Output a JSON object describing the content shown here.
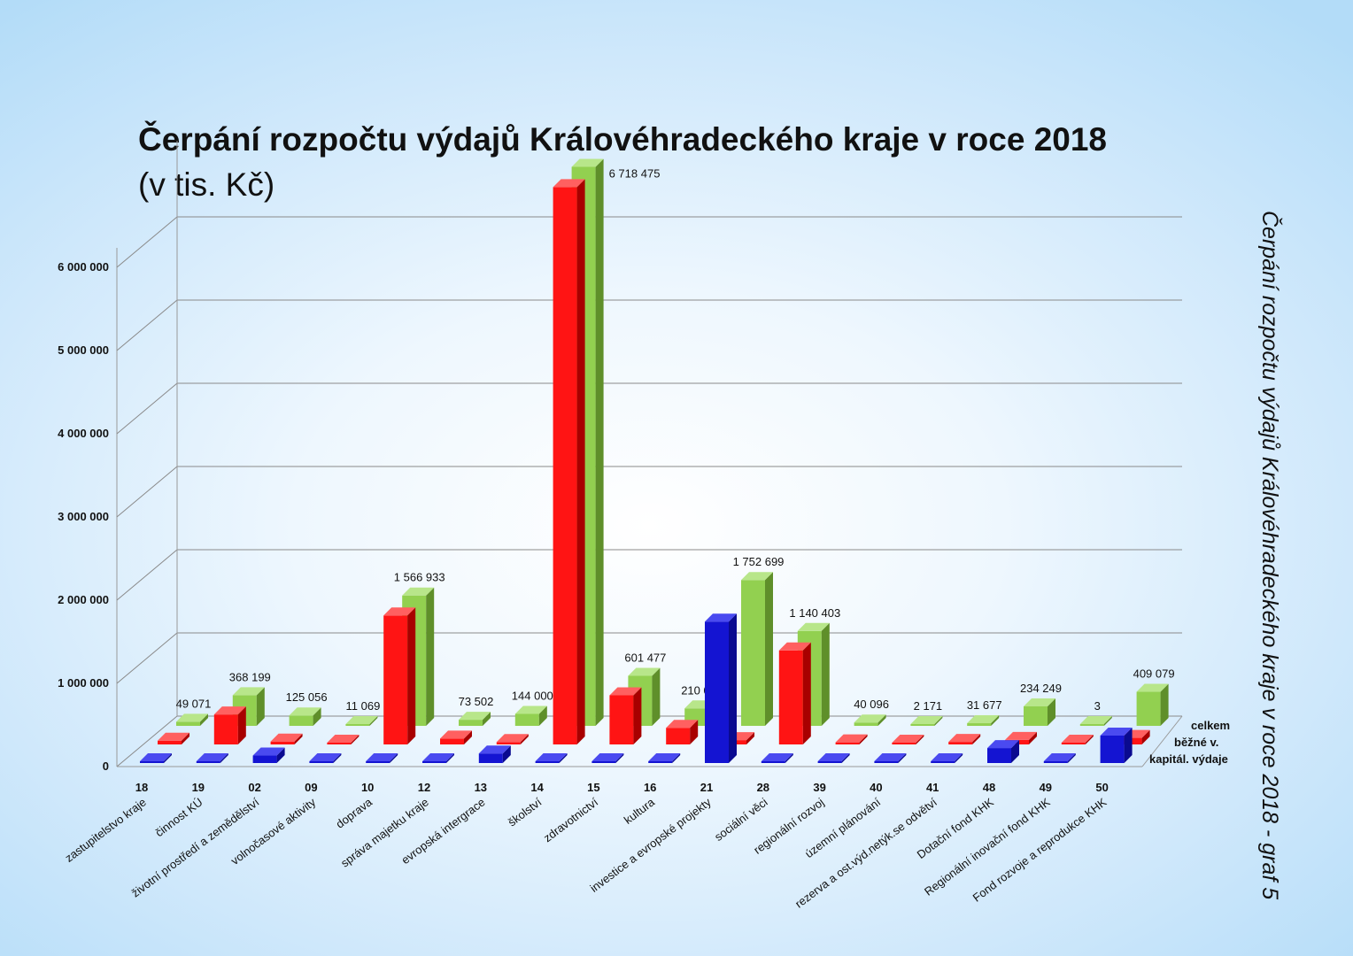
{
  "title": "Čerpání rozpočtu výdajů Královéhradeckého kraje v roce 2018",
  "subtitle": "(v tis. Kč)",
  "side_title": "Čerpání rozpočtu výdajů Královéhradeckého kraje v roce 2018 - graf 5",
  "chart_data": {
    "type": "bar",
    "subtype": "3d-clustered-depth",
    "title": "Čerpání rozpočtu výdajů Královéhradeckého kraje v roce 2018",
    "subtitle": "(v tis. Kč)",
    "codes": [
      "18",
      "19",
      "02",
      "09",
      "10",
      "12",
      "13",
      "14",
      "15",
      "16",
      "21",
      "28",
      "39",
      "40",
      "41",
      "48",
      "49",
      "50"
    ],
    "categories": [
      "zastupitelstvo kraje",
      "činnost KÚ",
      "životní prostředí a zemědělství",
      "volnočasové aktivity",
      "doprava",
      "správa majetku kraje",
      "evropská intergrace",
      "školství",
      "zdravotnictví",
      "kultura",
      "investice a evropské projekty",
      "sociální věci",
      "regionální rozvoj",
      "územní plánování",
      "rezerva a ost.výd.netýk.se odvětví",
      "Dotační fond KHK",
      "Regionální inovační fond KHK",
      "Fond rozvoje a reprodukce KHK"
    ],
    "series": [
      {
        "name": "kapitál. výdaje",
        "color": "#1414d2",
        "values": [
          4000,
          8000,
          90000,
          1000,
          17000,
          3500,
          115000,
          20000,
          10000,
          10000,
          1700000,
          10000,
          15000,
          500,
          1000,
          180000,
          0,
          330000
        ]
      },
      {
        "name": "běžné v.",
        "color": "#ff1414",
        "values": [
          45000,
          360000,
          35000,
          10000,
          1550000,
          70000,
          29000,
          6698000,
          591000,
          200000,
          52000,
          1130000,
          25000,
          1671,
          30677,
          54249,
          3,
          79079
        ]
      },
      {
        "name": "celkem",
        "color": "#92d050",
        "values": [
          49071,
          368199,
          125056,
          11069,
          1566933,
          73502,
          144000,
          6718475,
          601477,
          210039,
          1752699,
          1140403,
          40096,
          2171,
          31677,
          234249,
          3,
          409079
        ]
      }
    ],
    "data_labels": [
      "49 071",
      "368 199",
      "125 056",
      "11 069",
      "1 566 933",
      "73 502",
      "144 000",
      "6 718 475",
      "601 477",
      "210 039",
      "1 752 699",
      "1 140 403",
      "40 096",
      "2 171",
      "31 677",
      "234 249",
      "3",
      "409 079"
    ],
    "y_ticks": [
      0,
      1000000,
      2000000,
      3000000,
      4000000,
      5000000,
      6000000
    ],
    "y_tick_labels": [
      "0",
      "1 000 000",
      "2 000 000",
      "3 000 000",
      "4 000 000",
      "5 000 000",
      "6 000 000"
    ],
    "ylim": [
      0,
      7000000
    ],
    "grid": true,
    "legend": [
      "celkem",
      "běžné v.",
      "kapitál. výdaje"
    ],
    "legend_position": "right"
  }
}
